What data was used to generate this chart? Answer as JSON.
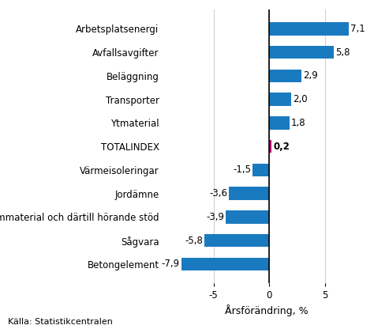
{
  "categories": [
    "Betongelement",
    "Sågvara",
    "Formmaterial och därtill hörande stöd",
    "Jordämne",
    "Värmeisoleringar",
    "TOTALINDEX",
    "Ytmaterial",
    "Transporter",
    "Beläggning",
    "Avfallsavgifter",
    "Arbetsplatsenergi"
  ],
  "values": [
    -7.9,
    -5.8,
    -3.9,
    -3.6,
    -1.5,
    0.2,
    1.8,
    2.0,
    2.9,
    5.8,
    7.1
  ],
  "value_labels": [
    "-7,9",
    "-5,8",
    "-3,9",
    "-3,6",
    "-1,5",
    "0,2",
    "1,8",
    "2,0",
    "2,9",
    "5,8",
    "7,1"
  ],
  "xlabel": "Årsförändring, %",
  "xlim": [
    -9.5,
    9.0
  ],
  "xticks": [
    -5,
    0,
    5
  ],
  "source": "Källa: Statistikcentralen",
  "bar_color_main": "#1a7abf",
  "bar_color_total": "#b5006e",
  "grid_color": "#d0d0d0",
  "background_color": "#ffffff",
  "label_fontsize": 8.5,
  "value_fontsize": 8.5,
  "source_fontsize": 8.0,
  "xlabel_fontsize": 9
}
